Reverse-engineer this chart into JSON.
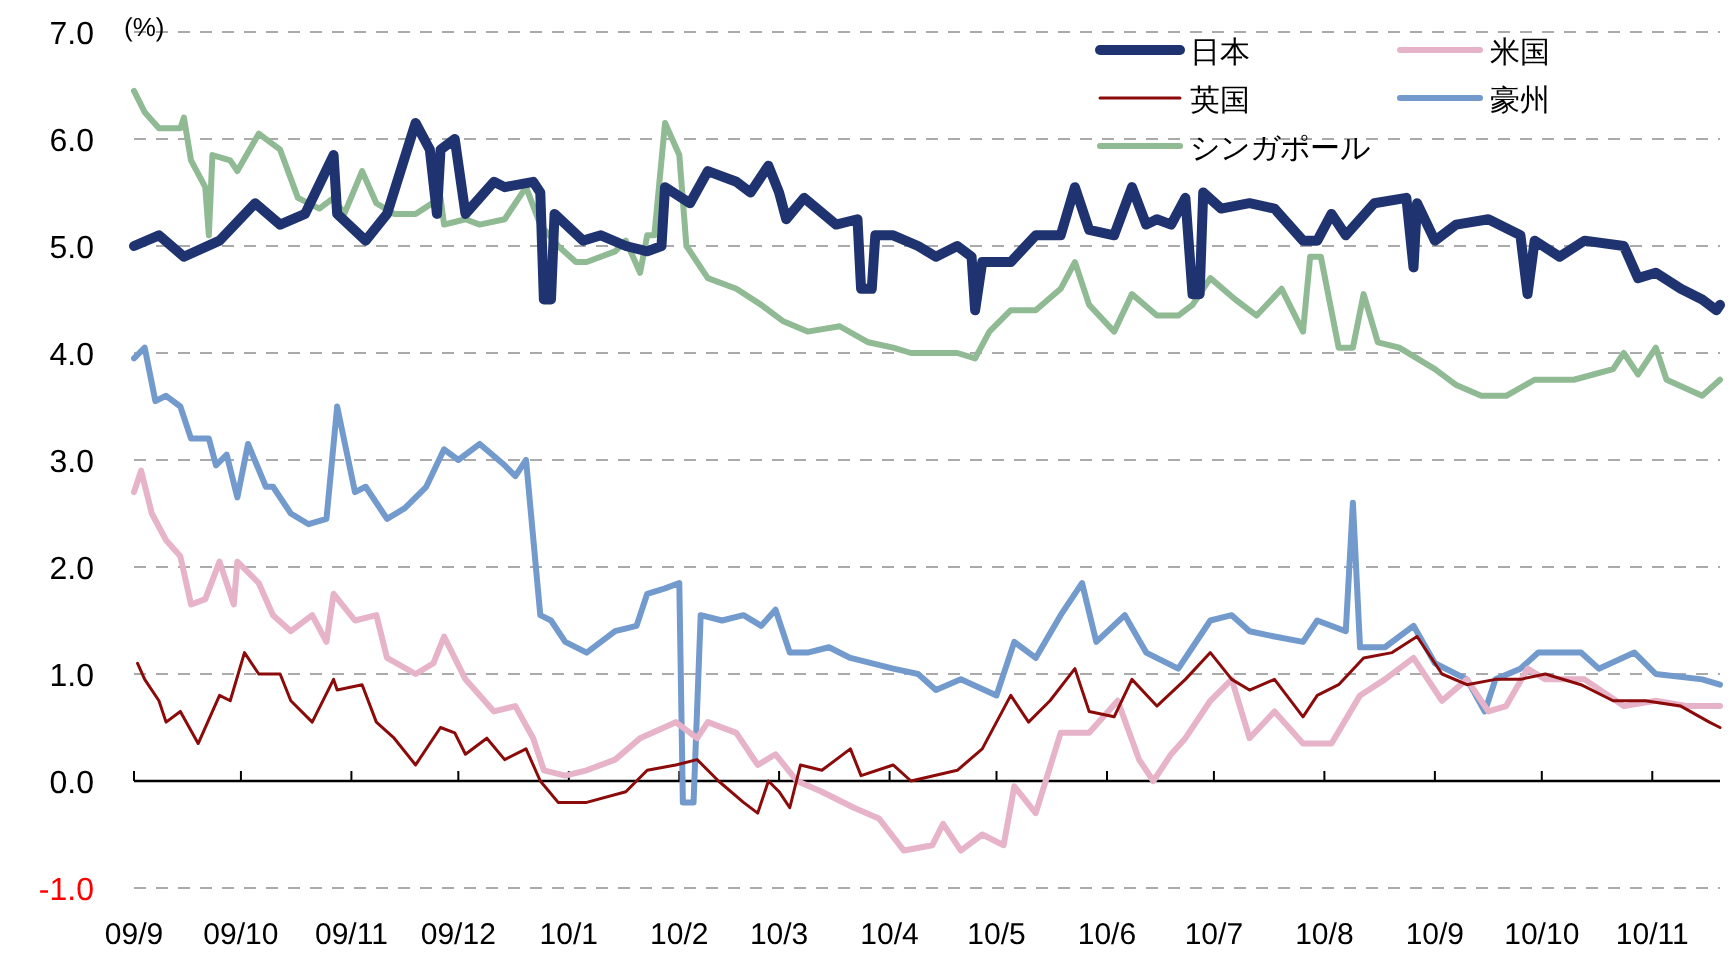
{
  "chart_data": {
    "type": "line",
    "ylabel": "(%)",
    "grid": "y",
    "legend": "top right",
    "xlim": [
      "2009-09-01",
      "2010-11-20"
    ],
    "xticks": [
      {
        "value": "2009-09",
        "label": "09/9"
      },
      {
        "value": "2009-10",
        "label": "09/10"
      },
      {
        "value": "2009-11",
        "label": "09/11"
      },
      {
        "value": "2009-12",
        "label": "09/12"
      },
      {
        "value": "2010-01",
        "label": "10/1"
      },
      {
        "value": "2010-02",
        "label": "10/2"
      },
      {
        "value": "2010-03",
        "label": "10/3"
      },
      {
        "value": "2010-04",
        "label": "10/4"
      },
      {
        "value": "2010-05",
        "label": "10/5"
      },
      {
        "value": "2010-06",
        "label": "10/6"
      },
      {
        "value": "2010-07",
        "label": "10/7"
      },
      {
        "value": "2010-08",
        "label": "10/8"
      },
      {
        "value": "2010-09",
        "label": "10/9"
      },
      {
        "value": "2010-10",
        "label": "10/10"
      },
      {
        "value": "2010-11",
        "label": "10/11"
      }
    ],
    "ylim": [
      -1,
      7
    ],
    "yticks": [
      {
        "value": -1,
        "label": "-1.0"
      },
      {
        "value": 0,
        "label": "0.0"
      },
      {
        "value": 1,
        "label": "1.0"
      },
      {
        "value": 2,
        "label": "2.0"
      },
      {
        "value": 3,
        "label": "3.0"
      },
      {
        "value": 4,
        "label": "4.0"
      },
      {
        "value": 5,
        "label": "5.0"
      },
      {
        "value": 6,
        "label": "6.0"
      },
      {
        "value": 7,
        "label": "7.0"
      }
    ],
    "series": [
      {
        "name": "日本",
        "color": "#1f3370",
        "x": [
          "2009-09-01",
          "2009-09-08",
          "2009-09-15",
          "2009-09-25",
          "2009-10-05",
          "2009-10-12",
          "2009-10-19",
          "2009-10-27",
          "2009-10-28",
          "2009-11-05",
          "2009-11-11",
          "2009-11-19",
          "2009-11-23",
          "2009-11-25",
          "2009-11-26",
          "2009-11-30",
          "2009-12-03",
          "2009-12-11",
          "2009-12-14",
          "2009-12-22",
          "2009-12-24",
          "2009-12-25",
          "2009-12-27",
          "2009-12-28",
          "2010-01-05",
          "2010-01-10",
          "2010-01-17",
          "2010-01-23",
          "2010-01-27",
          "2010-01-28",
          "2010-02-04",
          "2010-02-09",
          "2010-02-17",
          "2010-02-21",
          "2010-02-26",
          "2010-03-01",
          "2010-03-03",
          "2010-03-08",
          "2010-03-17",
          "2010-03-23",
          "2010-03-24",
          "2010-03-27",
          "2010-03-28",
          "2010-04-02",
          "2010-04-09",
          "2010-04-14",
          "2010-04-20",
          "2010-04-24",
          "2010-04-25",
          "2010-04-27",
          "2010-05-05",
          "2010-05-12",
          "2010-05-19",
          "2010-05-23",
          "2010-05-27",
          "2010-06-03",
          "2010-06-08",
          "2010-06-12",
          "2010-06-15",
          "2010-06-19",
          "2010-06-23",
          "2010-06-25",
          "2010-06-27",
          "2010-06-28",
          "2010-07-03",
          "2010-07-11",
          "2010-07-18",
          "2010-07-26",
          "2010-07-30",
          "2010-08-03",
          "2010-08-07",
          "2010-08-15",
          "2010-08-24",
          "2010-08-26",
          "2010-08-27",
          "2010-09-01",
          "2010-09-07",
          "2010-09-16",
          "2010-09-25",
          "2010-09-27",
          "2010-09-29",
          "2010-10-06",
          "2010-10-13",
          "2010-10-24",
          "2010-10-28",
          "2010-11-02",
          "2010-11-09",
          "2010-11-15",
          "2010-11-19",
          "2010-11-20"
        ],
        "values": [
          5.0,
          5.1,
          4.9,
          5.05,
          5.4,
          5.2,
          5.3,
          5.85,
          5.3,
          5.05,
          5.3,
          6.15,
          5.9,
          5.3,
          5.9,
          6.0,
          5.3,
          5.6,
          5.55,
          5.6,
          5.5,
          4.5,
          4.5,
          5.3,
          5.05,
          5.1,
          5.0,
          4.95,
          5.0,
          5.55,
          5.4,
          5.7,
          5.6,
          5.5,
          5.75,
          5.5,
          5.25,
          5.45,
          5.2,
          5.25,
          4.6,
          4.6,
          5.1,
          5.1,
          5.0,
          4.9,
          5.0,
          4.9,
          4.4,
          4.85,
          4.85,
          5.1,
          5.1,
          5.55,
          5.15,
          5.1,
          5.55,
          5.2,
          5.25,
          5.2,
          5.45,
          4.55,
          4.55,
          5.5,
          5.35,
          5.4,
          5.35,
          5.05,
          5.05,
          5.3,
          5.1,
          5.4,
          5.45,
          4.8,
          5.4,
          5.05,
          5.2,
          5.25,
          5.1,
          4.55,
          5.05,
          4.9,
          5.05,
          5.0,
          4.7,
          4.75,
          4.6,
          4.5,
          4.4,
          4.45
        ]
      },
      {
        "name": "米国",
        "color": "#e6b3c8",
        "x": [
          "2009-09-01",
          "2009-09-03",
          "2009-09-06",
          "2009-09-10",
          "2009-09-14",
          "2009-09-17",
          "2009-09-21",
          "2009-09-25",
          "2009-09-29",
          "2009-09-30",
          "2009-10-06",
          "2009-10-10",
          "2009-10-15",
          "2009-10-21",
          "2009-10-25",
          "2009-10-27",
          "2009-11-02",
          "2009-11-08",
          "2009-11-11",
          "2009-11-19",
          "2009-11-24",
          "2009-11-27",
          "2009-12-03",
          "2009-12-11",
          "2009-12-17",
          "2009-12-22",
          "2009-12-25",
          "2009-12-31",
          "2010-01-06",
          "2010-01-14",
          "2010-01-21",
          "2010-01-31",
          "2010-02-06",
          "2010-02-09",
          "2010-02-17",
          "2010-02-23",
          "2010-02-28",
          "2010-03-06",
          "2010-03-13",
          "2010-03-22",
          "2010-03-29",
          "2010-04-05",
          "2010-04-13",
          "2010-04-16",
          "2010-04-21",
          "2010-04-27",
          "2010-05-03",
          "2010-05-06",
          "2010-05-12",
          "2010-05-19",
          "2010-05-27",
          "2010-06-04",
          "2010-06-10",
          "2010-06-14",
          "2010-06-19",
          "2010-06-23",
          "2010-06-30",
          "2010-07-06",
          "2010-07-11",
          "2010-07-18",
          "2010-07-26",
          "2010-08-03",
          "2010-08-11",
          "2010-08-18",
          "2010-08-26",
          "2010-09-03",
          "2010-09-10",
          "2010-09-16",
          "2010-09-21",
          "2010-09-27",
          "2010-10-02",
          "2010-10-13",
          "2010-10-24",
          "2010-11-02",
          "2010-11-11",
          "2010-11-20"
        ],
        "values": [
          2.7,
          2.9,
          2.5,
          2.25,
          2.1,
          1.65,
          1.7,
          2.05,
          1.65,
          2.05,
          1.85,
          1.55,
          1.4,
          1.55,
          1.3,
          1.75,
          1.5,
          1.55,
          1.15,
          1.0,
          1.1,
          1.35,
          0.95,
          0.65,
          0.7,
          0.4,
          0.1,
          0.05,
          0.1,
          0.2,
          0.4,
          0.55,
          0.4,
          0.55,
          0.45,
          0.15,
          0.25,
          0.0,
          -0.1,
          -0.25,
          -0.35,
          -0.65,
          -0.6,
          -0.4,
          -0.65,
          -0.5,
          -0.6,
          -0.05,
          -0.3,
          0.45,
          0.45,
          0.75,
          0.2,
          0.0,
          0.25,
          0.4,
          0.75,
          0.95,
          0.4,
          0.65,
          0.35,
          0.35,
          0.8,
          0.95,
          1.15,
          0.75,
          0.95,
          0.65,
          0.7,
          1.05,
          0.95,
          0.95,
          0.7,
          0.75,
          0.7,
          0.7
        ]
      },
      {
        "name": "英国",
        "color": "#8b0a0a",
        "x": [
          "2009-09-02",
          "2009-09-04",
          "2009-09-08",
          "2009-09-10",
          "2009-09-14",
          "2009-09-19",
          "2009-09-25",
          "2009-09-28",
          "2009-10-02",
          "2009-10-06",
          "2009-10-12",
          "2009-10-15",
          "2009-10-21",
          "2009-10-27",
          "2009-10-28",
          "2009-11-04",
          "2009-11-08",
          "2009-11-13",
          "2009-11-19",
          "2009-11-26",
          "2009-11-30",
          "2009-12-03",
          "2009-12-09",
          "2009-12-14",
          "2009-12-20",
          "2009-12-24",
          "2009-12-29",
          "2010-01-06",
          "2010-01-17",
          "2010-01-23",
          "2010-01-31",
          "2010-02-06",
          "2010-02-12",
          "2010-02-19",
          "2010-02-23",
          "2010-02-26",
          "2010-03-01",
          "2010-03-04",
          "2010-03-07",
          "2010-03-13",
          "2010-03-21",
          "2010-03-24",
          "2010-04-02",
          "2010-04-07",
          "2010-04-20",
          "2010-04-27",
          "2010-05-05",
          "2010-05-10",
          "2010-05-16",
          "2010-05-23",
          "2010-05-27",
          "2010-06-03",
          "2010-06-08",
          "2010-06-15",
          "2010-06-23",
          "2010-06-30",
          "2010-07-06",
          "2010-07-11",
          "2010-07-18",
          "2010-07-26",
          "2010-07-30",
          "2010-08-05",
          "2010-08-12",
          "2010-08-20",
          "2010-08-27",
          "2010-09-03",
          "2010-09-10",
          "2010-09-18",
          "2010-09-25",
          "2010-10-02",
          "2010-10-12",
          "2010-10-21",
          "2010-10-30",
          "2010-11-09",
          "2010-11-17",
          "2010-11-20"
        ],
        "values": [
          1.1,
          0.95,
          0.75,
          0.55,
          0.65,
          0.35,
          0.8,
          0.75,
          1.2,
          1.0,
          1.0,
          0.75,
          0.55,
          0.95,
          0.85,
          0.9,
          0.55,
          0.4,
          0.15,
          0.5,
          0.45,
          0.25,
          0.4,
          0.2,
          0.3,
          0.0,
          -0.2,
          -0.2,
          -0.1,
          0.1,
          0.15,
          0.2,
          0.0,
          -0.2,
          -0.3,
          0.0,
          -0.1,
          -0.25,
          0.15,
          0.1,
          0.3,
          0.05,
          0.15,
          0.0,
          0.1,
          0.3,
          0.8,
          0.55,
          0.75,
          1.05,
          0.65,
          0.6,
          0.95,
          0.7,
          0.95,
          1.2,
          0.95,
          0.85,
          0.95,
          0.6,
          0.8,
          0.9,
          1.15,
          1.2,
          1.35,
          1.0,
          0.9,
          0.95,
          0.95,
          1.0,
          0.9,
          0.75,
          0.75,
          0.7,
          0.55,
          0.5
        ]
      },
      {
        "name": "豪州",
        "color": "#729acc",
        "x": [
          "2009-09-01",
          "2009-09-04",
          "2009-09-07",
          "2009-09-10",
          "2009-09-14",
          "2009-09-17",
          "2009-09-22",
          "2009-09-24",
          "2009-09-27",
          "2009-09-30",
          "2009-10-03",
          "2009-10-08",
          "2009-10-10",
          "2009-10-15",
          "2009-10-20",
          "2009-10-25",
          "2009-10-28",
          "2009-11-02",
          "2009-11-05",
          "2009-11-11",
          "2009-11-16",
          "2009-11-22",
          "2009-11-27",
          "2009-12-01",
          "2009-12-07",
          "2009-12-14",
          "2009-12-17",
          "2009-12-20",
          "2009-12-24",
          "2009-12-27",
          "2009-12-31",
          "2010-01-06",
          "2010-01-14",
          "2010-01-20",
          "2010-01-23",
          "2010-01-28",
          "2010-02-01",
          "2010-02-02",
          "2010-02-05",
          "2010-02-07",
          "2010-02-13",
          "2010-02-19",
          "2010-02-24",
          "2010-02-28",
          "2010-03-04",
          "2010-03-09",
          "2010-03-15",
          "2010-03-21",
          "2010-04-02",
          "2010-04-09",
          "2010-04-14",
          "2010-04-21",
          "2010-05-01",
          "2010-05-06",
          "2010-05-12",
          "2010-05-19",
          "2010-05-25",
          "2010-05-29",
          "2010-06-06",
          "2010-06-12",
          "2010-06-21",
          "2010-06-25",
          "2010-06-30",
          "2010-07-06",
          "2010-07-11",
          "2010-07-18",
          "2010-07-26",
          "2010-07-30",
          "2010-08-07",
          "2010-08-09",
          "2010-08-11",
          "2010-08-18",
          "2010-08-26",
          "2010-09-01",
          "2010-09-10",
          "2010-09-15",
          "2010-09-18",
          "2010-09-25",
          "2010-09-30",
          "2010-10-12",
          "2010-10-17",
          "2010-10-27",
          "2010-11-02",
          "2010-11-15",
          "2010-11-20"
        ],
        "values": [
          3.95,
          4.05,
          3.55,
          3.6,
          3.5,
          3.2,
          3.2,
          2.95,
          3.05,
          2.65,
          3.15,
          2.75,
          2.75,
          2.5,
          2.4,
          2.45,
          3.5,
          2.7,
          2.75,
          2.45,
          2.55,
          2.75,
          3.1,
          3.0,
          3.15,
          2.95,
          2.85,
          3.0,
          1.55,
          1.5,
          1.3,
          1.2,
          1.4,
          1.45,
          1.75,
          1.8,
          1.85,
          -0.2,
          -0.2,
          1.55,
          1.5,
          1.55,
          1.45,
          1.6,
          1.2,
          1.2,
          1.25,
          1.15,
          1.05,
          1.0,
          0.85,
          0.95,
          0.8,
          1.3,
          1.15,
          1.55,
          1.85,
          1.3,
          1.55,
          1.2,
          1.05,
          1.25,
          1.5,
          1.55,
          1.4,
          1.35,
          1.3,
          1.5,
          1.4,
          2.6,
          1.25,
          1.25,
          1.45,
          1.1,
          0.95,
          0.65,
          0.95,
          1.05,
          1.2,
          1.2,
          1.05,
          1.2,
          1.0,
          0.95,
          0.9
        ]
      },
      {
        "name": "シンガポール",
        "color": "#8fba94",
        "x": [
          "2009-09-01",
          "2009-09-04",
          "2009-09-08",
          "2009-09-14",
          "2009-09-15",
          "2009-09-17",
          "2009-09-21",
          "2009-09-22",
          "2009-09-23",
          "2009-09-28",
          "2009-09-30",
          "2009-10-06",
          "2009-10-12",
          "2009-10-17",
          "2009-10-23",
          "2009-10-27",
          "2009-10-30",
          "2009-11-04",
          "2009-11-08",
          "2009-11-13",
          "2009-11-19",
          "2009-11-26",
          "2009-11-27",
          "2009-12-03",
          "2009-12-07",
          "2009-12-14",
          "2009-12-20",
          "2009-12-24",
          "2009-12-29",
          "2010-01-03",
          "2010-01-06",
          "2010-01-14",
          "2010-01-17",
          "2010-01-21",
          "2010-01-23",
          "2010-01-25",
          "2010-01-28",
          "2010-02-01",
          "2010-02-03",
          "2010-02-09",
          "2010-02-17",
          "2010-02-24",
          "2010-03-02",
          "2010-03-09",
          "2010-03-18",
          "2010-03-26",
          "2010-04-02",
          "2010-04-07",
          "2010-04-20",
          "2010-04-25",
          "2010-04-29",
          "2010-05-05",
          "2010-05-12",
          "2010-05-19",
          "2010-05-23",
          "2010-05-27",
          "2010-06-03",
          "2010-06-08",
          "2010-06-15",
          "2010-06-21",
          "2010-06-25",
          "2010-06-30",
          "2010-07-07",
          "2010-07-13",
          "2010-07-20",
          "2010-07-26",
          "2010-07-28",
          "2010-07-31",
          "2010-08-05",
          "2010-08-09",
          "2010-08-12",
          "2010-08-16",
          "2010-08-22",
          "2010-09-01",
          "2010-09-07",
          "2010-09-14",
          "2010-09-21",
          "2010-09-29",
          "2010-10-10",
          "2010-10-21",
          "2010-10-24",
          "2010-10-28",
          "2010-11-02",
          "2010-11-05",
          "2010-11-15",
          "2010-11-20"
        ],
        "values": [
          6.45,
          6.25,
          6.1,
          6.1,
          6.2,
          5.8,
          5.55,
          5.1,
          5.85,
          5.8,
          5.7,
          6.05,
          5.9,
          5.45,
          5.35,
          5.45,
          5.3,
          5.7,
          5.4,
          5.3,
          5.3,
          5.45,
          5.2,
          5.25,
          5.2,
          5.25,
          5.55,
          5.2,
          5.0,
          4.85,
          4.85,
          4.95,
          5.05,
          4.75,
          5.1,
          5.1,
          6.15,
          5.85,
          5.0,
          4.7,
          4.6,
          4.45,
          4.3,
          4.2,
          4.25,
          4.1,
          4.05,
          4.0,
          4.0,
          3.95,
          4.2,
          4.4,
          4.4,
          4.6,
          4.85,
          4.45,
          4.2,
          4.55,
          4.35,
          4.35,
          4.45,
          4.7,
          4.5,
          4.35,
          4.6,
          4.2,
          4.9,
          4.9,
          4.05,
          4.05,
          4.55,
          4.1,
          4.05,
          3.85,
          3.7,
          3.6,
          3.6,
          3.75,
          3.75,
          3.85,
          4.0,
          3.8,
          4.05,
          3.75,
          3.6,
          3.75
        ]
      }
    ]
  }
}
